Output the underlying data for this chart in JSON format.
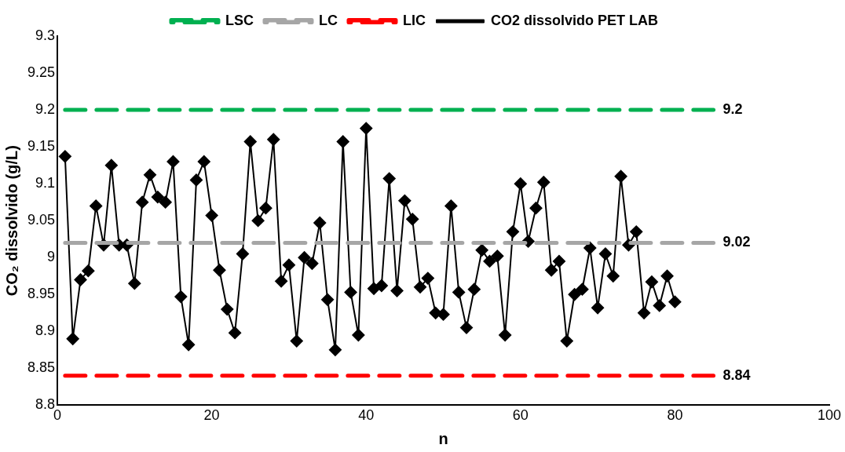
{
  "chart_data": {
    "type": "line",
    "xlabel": "n",
    "ylabel": "CO₂ dissolvido (g/L)",
    "xlim": [
      0,
      100
    ],
    "xticks": [
      0,
      20,
      40,
      60,
      80,
      100
    ],
    "ylim": [
      8.8,
      9.3
    ],
    "yticks": [
      8.8,
      8.85,
      8.9,
      8.95,
      9,
      9.05,
      9.1,
      9.15,
      9.2,
      9.25,
      9.3
    ],
    "grid": false,
    "legend": "top",
    "series": [
      {
        "name": "LSC",
        "color": "#00b050",
        "x": [
          1,
          85
        ],
        "values": [
          9.2,
          9.2
        ],
        "value_labels": [
          null,
          "9.2"
        ],
        "line_style": "dashed",
        "marker": "none"
      },
      {
        "name": "LC",
        "color": "#a6a6a6",
        "x": [
          1,
          85
        ],
        "values": [
          9.02,
          9.02
        ],
        "value_labels": [
          null,
          "9.02"
        ],
        "line_style": "dashed",
        "marker": "none"
      },
      {
        "name": "LIC",
        "color": "#ff0000",
        "x": [
          1,
          85
        ],
        "values": [
          8.84,
          8.84
        ],
        "value_labels": [
          null,
          "8.84"
        ],
        "line_style": "dashed",
        "marker": "none"
      },
      {
        "name": "CO2 dissolvido PET LAB",
        "color": "#000000",
        "marker": "diamond",
        "line_style": "solid",
        "x": [
          1,
          2,
          3,
          4,
          5,
          6,
          7,
          8,
          9,
          10,
          11,
          12,
          13,
          14,
          15,
          16,
          17,
          18,
          19,
          20,
          21,
          22,
          23,
          24,
          25,
          26,
          27,
          28,
          29,
          30,
          31,
          32,
          33,
          34,
          35,
          36,
          37,
          38,
          39,
          40,
          41,
          42,
          43,
          44,
          45,
          46,
          47,
          48,
          49,
          50,
          51,
          52,
          53,
          54,
          55,
          56,
          57,
          58,
          59,
          60,
          61,
          62,
          63,
          64,
          65,
          66,
          67,
          68,
          69,
          70,
          71,
          72,
          73,
          74,
          75,
          76,
          77,
          78,
          79,
          80
        ],
        "values": [
          9.137,
          8.89,
          8.97,
          8.982,
          9.07,
          9.017,
          9.125,
          9.017,
          9.017,
          8.965,
          9.075,
          9.112,
          9.082,
          9.075,
          9.13,
          8.947,
          8.882,
          9.105,
          9.13,
          9.057,
          8.983,
          8.93,
          8.898,
          9.005,
          9.157,
          9.05,
          9.067,
          9.16,
          8.968,
          8.99,
          8.887,
          9.0,
          8.992,
          9.047,
          8.943,
          8.875,
          9.157,
          8.953,
          8.895,
          9.175,
          8.958,
          8.962,
          9.107,
          8.955,
          9.077,
          9.052,
          8.96,
          8.972,
          8.925,
          8.923,
          9.07,
          8.953,
          8.905,
          8.957,
          9.01,
          8.995,
          9.002,
          8.895,
          9.035,
          9.1,
          9.022,
          9.067,
          9.102,
          8.983,
          8.995,
          8.887,
          8.95,
          8.957,
          9.013,
          8.932,
          9.005,
          8.975,
          9.11,
          9.017,
          9.035,
          8.925,
          8.967,
          8.935,
          8.975,
          8.94
        ]
      }
    ]
  }
}
